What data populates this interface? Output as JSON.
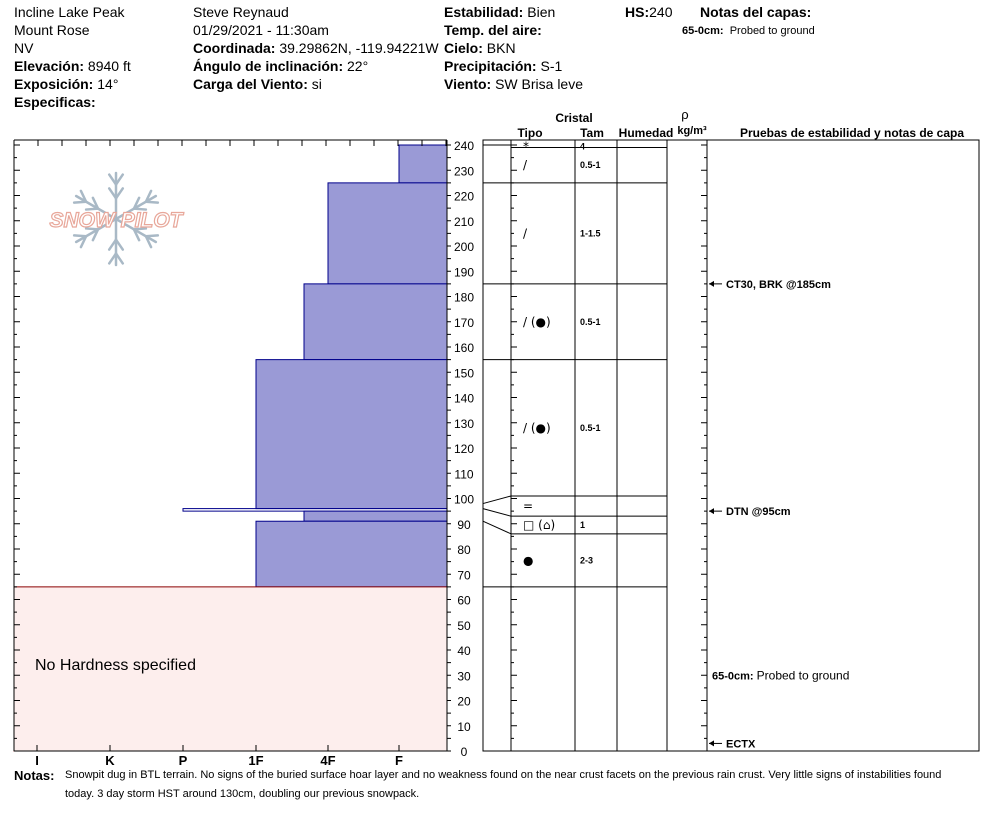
{
  "header": {
    "location": "Incline Lake Peak",
    "range": "Mount Rose",
    "state": "NV",
    "elevation_label": "Elevación:",
    "elevation_value": "8940 ft",
    "aspect_label": "Exposición:",
    "aspect_value": "14°",
    "specifics_label": "Especificas:",
    "observer": "Steve Reynaud",
    "datetime": "01/29/2021 - 11:30am",
    "coord_label": "Coordinada:",
    "coord_value": "39.29862N, -119.94221W",
    "slope_label": "Ángulo de inclinación:",
    "slope_value": "22°",
    "wind_load_label": "Carga del Viento:",
    "wind_load_value": "si",
    "stability_label": "Estabilidad:",
    "stability_value": "Bien",
    "air_temp_label": "Temp. del aire:",
    "air_temp_value": "",
    "sky_label": "Cielo:",
    "sky_value": "BKN",
    "precip_label": "Precipitación:",
    "precip_value": "S-1",
    "wind_label": "Viento:",
    "wind_value": "SW  Brisa leve",
    "hs_label": "HS:",
    "hs_value": "240",
    "layer_notes_label": "Notas del capas:",
    "layer_notes_range": "65-0cm:",
    "layer_notes_text": "Probed to ground"
  },
  "table_headers": {
    "crystal": "Cristal",
    "type": "Tipo",
    "size": "Tam",
    "humidity": "Humedad",
    "rho": "ρ",
    "density_unit": "kg/m³",
    "tests": "Pruebas de estabilidad y notas de capa"
  },
  "logo_text": "SNOW PILOT",
  "no_hardness_text": "No Hardness specified",
  "colors": {
    "hardness_fill": "#9a9ad6",
    "hardness_stroke": "#00008b",
    "no_hardness_fill": "#fdeeed",
    "no_hardness_stroke": "#8b0000",
    "logo": "#e8a79a"
  },
  "chart_data": {
    "type": "snow-profile",
    "y_axis": {
      "min": 0,
      "max": 240,
      "step": 10
    },
    "hardness_scale": [
      "I",
      "K",
      "P",
      "1F",
      "4F",
      "F"
    ],
    "hardness_layers": [
      {
        "top": 240,
        "bottom": 225,
        "hardness": "F"
      },
      {
        "top": 225,
        "bottom": 185,
        "hardness": "4F"
      },
      {
        "top": 185,
        "bottom": 155,
        "hardness": "4F-"
      },
      {
        "top": 155,
        "bottom": 96,
        "hardness": "1F"
      },
      {
        "top": 96,
        "bottom": 95,
        "hardness": "P"
      },
      {
        "top": 95,
        "bottom": 91,
        "hardness": "4F-"
      },
      {
        "top": 91,
        "bottom": 65,
        "hardness": "1F"
      }
    ],
    "no_hardness_range": {
      "top": 65,
      "bottom": 0
    },
    "layer_rows": [
      {
        "top": 240,
        "bottom": 239,
        "type": "*",
        "size": "4"
      },
      {
        "top": 239,
        "bottom": 225,
        "type": "/",
        "size": "0.5-1"
      },
      {
        "top": 225,
        "bottom": 185,
        "type": "/",
        "size": "1-1.5"
      },
      {
        "top": 185,
        "bottom": 155,
        "type": "/ (●)",
        "size": "0.5-1"
      },
      {
        "top": 155,
        "bottom": 101,
        "type": "/ (●)",
        "size": "0.5-1"
      },
      {
        "top": 101,
        "bottom": 93,
        "type": "=",
        "size": ""
      },
      {
        "top": 93,
        "bottom": 86,
        "type": "□ (⌂)",
        "size": "1"
      },
      {
        "top": 86,
        "bottom": 65,
        "type": "●",
        "size": "2-3"
      },
      {
        "top": 65,
        "bottom": 0,
        "type": "",
        "size": ""
      }
    ],
    "stability_tests": [
      {
        "depth": 185,
        "label": "CT30, BRK @185cm",
        "bold": true
      },
      {
        "depth": 95,
        "label": "DTN @95cm",
        "bold": true
      },
      {
        "depth": 3,
        "label": "ECTX",
        "bold": true
      }
    ],
    "layer_comments": [
      {
        "depth": 30,
        "range": "65-0cm:",
        "text": "Probed to ground"
      }
    ]
  },
  "notes": {
    "label": "Notas:",
    "text": "Snowpit dug in BTL terrain.   No signs of the buried surface hoar layer and no weakness found on the near crust facets on the previous rain crust.   Very little signs of instabilities found today.   3 day storm HST around 130cm, doubling our previous snowpack."
  }
}
